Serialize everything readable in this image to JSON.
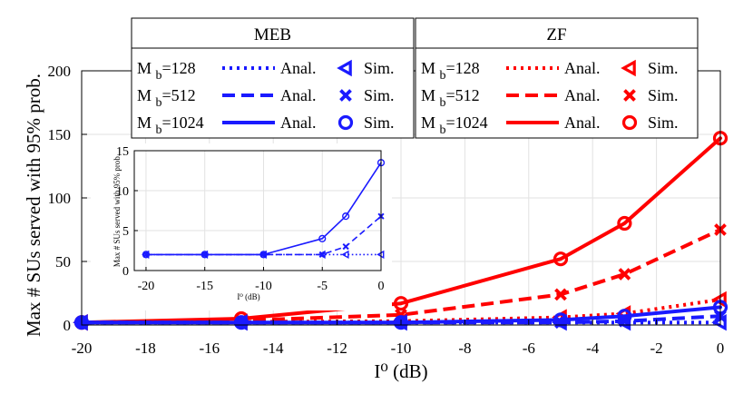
{
  "chart_data": [
    {
      "type": "line",
      "xlabel": "I⁰ (dB)",
      "ylabel": "Max # SUs served with 95% prob.",
      "xlim": [
        -20,
        0
      ],
      "ylim": [
        0,
        200
      ],
      "xticks": [
        -20,
        -18,
        -16,
        -14,
        -12,
        -10,
        -8,
        -6,
        -4,
        -2,
        0
      ],
      "yticks": [
        0,
        50,
        100,
        150,
        200
      ],
      "grid": true,
      "legend": [
        {
          "title": "MEB",
          "color": "#1a1aff",
          "rows": [
            {
              "label": "M_b=128",
              "anal": "Anal.",
              "sim": "Sim.",
              "linestyle": "dotted",
              "marker": "triangle-left"
            },
            {
              "label": "M_b=512",
              "anal": "Anal.",
              "sim": "Sim.",
              "linestyle": "dashed",
              "marker": "x"
            },
            {
              "label": "M_b=1024",
              "anal": "Anal.",
              "sim": "Sim.",
              "linestyle": "solid",
              "marker": "circle"
            }
          ]
        },
        {
          "title": "ZF",
          "color": "#ff0000",
          "rows": [
            {
              "label": "M_b=128",
              "anal": "Anal.",
              "sim": "Sim.",
              "linestyle": "dotted",
              "marker": "triangle-left"
            },
            {
              "label": "M_b=512",
              "anal": "Anal.",
              "sim": "Sim.",
              "linestyle": "dashed",
              "marker": "x"
            },
            {
              "label": "M_b=1024",
              "anal": "Anal.",
              "sim": "Sim.",
              "linestyle": "solid",
              "marker": "circle"
            }
          ]
        }
      ],
      "x": [
        -20,
        -15,
        -10,
        -5,
        -3,
        0
      ],
      "series": [
        {
          "group": "ZF",
          "mb": "128",
          "color": "#ff0000",
          "linestyle": "dotted",
          "marker": "triangle-left",
          "values": [
            2,
            2.5,
            3,
            6,
            9,
            20
          ]
        },
        {
          "group": "ZF",
          "mb": "512",
          "color": "#ff0000",
          "linestyle": "dashed",
          "marker": "x",
          "values": [
            2,
            3.5,
            8,
            24,
            40,
            75
          ]
        },
        {
          "group": "ZF",
          "mb": "1024",
          "color": "#ff0000",
          "linestyle": "solid",
          "marker": "circle",
          "values": [
            2,
            5,
            17,
            52,
            80,
            147
          ]
        },
        {
          "group": "MEB",
          "mb": "128",
          "color": "#1a1aff",
          "linestyle": "dotted",
          "marker": "triangle-left",
          "values": [
            2,
            2,
            2,
            2,
            2,
            2
          ]
        },
        {
          "group": "MEB",
          "mb": "512",
          "color": "#1a1aff",
          "linestyle": "dashed",
          "marker": "x",
          "values": [
            2,
            2,
            2,
            2,
            3,
            7
          ]
        },
        {
          "group": "MEB",
          "mb": "1024",
          "color": "#1a1aff",
          "linestyle": "solid",
          "marker": "circle",
          "values": [
            2,
            2,
            2,
            4,
            7,
            14
          ]
        }
      ]
    },
    {
      "type": "line",
      "xlabel": "I⁰ (dB)",
      "ylabel": "Max # SUs served with 95% prob.",
      "xlim": [
        -21,
        0
      ],
      "ylim": [
        0,
        15
      ],
      "xticks": [
        -20,
        -15,
        -10,
        -5,
        0
      ],
      "yticks": [
        0,
        5,
        10,
        15
      ],
      "grid": true,
      "x": [
        -20,
        -15,
        -10,
        -5,
        -3,
        0
      ],
      "series": [
        {
          "group": "MEB",
          "mb": "128",
          "color": "#1a1aff",
          "linestyle": "dotted",
          "marker": "triangle-left",
          "values": [
            2,
            2,
            2,
            2,
            2,
            2
          ]
        },
        {
          "group": "MEB",
          "mb": "512",
          "color": "#1a1aff",
          "linestyle": "dashed",
          "marker": "x",
          "values": [
            2,
            2,
            2,
            2,
            3,
            6.8
          ]
        },
        {
          "group": "MEB",
          "mb": "1024",
          "color": "#1a1aff",
          "linestyle": "solid",
          "marker": "circle",
          "values": [
            2,
            2,
            2,
            4,
            6.8,
            13.5
          ]
        }
      ]
    }
  ]
}
